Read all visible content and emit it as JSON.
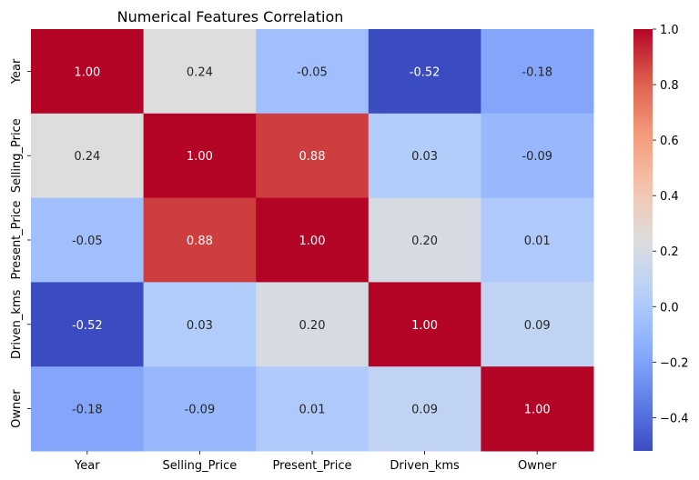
{
  "chart_data": {
    "type": "heatmap",
    "title": "Numerical Features Correlation",
    "x_labels": [
      "Year",
      "Selling_Price",
      "Present_Price",
      "Driven_kms",
      "Owner"
    ],
    "y_labels": [
      "Year",
      "Selling_Price",
      "Present_Price",
      "Driven_kms",
      "Owner"
    ],
    "values": [
      [
        1.0,
        0.24,
        -0.05,
        -0.52,
        -0.18
      ],
      [
        0.24,
        1.0,
        0.88,
        0.03,
        -0.09
      ],
      [
        -0.05,
        0.88,
        1.0,
        0.2,
        0.01
      ],
      [
        -0.52,
        0.03,
        0.2,
        1.0,
        0.09
      ],
      [
        -0.18,
        -0.09,
        0.01,
        0.09,
        1.0
      ]
    ],
    "value_format": "0.00",
    "colormap": "coolwarm",
    "color_range": [
      -0.52,
      1.0
    ],
    "colorbar_ticks": [
      "1.0",
      "0.8",
      "0.6",
      "0.4",
      "0.2",
      "0.0",
      "−0.2",
      "−0.4"
    ],
    "colorbar_tick_values": [
      1.0,
      0.8,
      0.6,
      0.4,
      0.2,
      0.0,
      -0.2,
      -0.4
    ],
    "legend": "colorbar-right"
  }
}
